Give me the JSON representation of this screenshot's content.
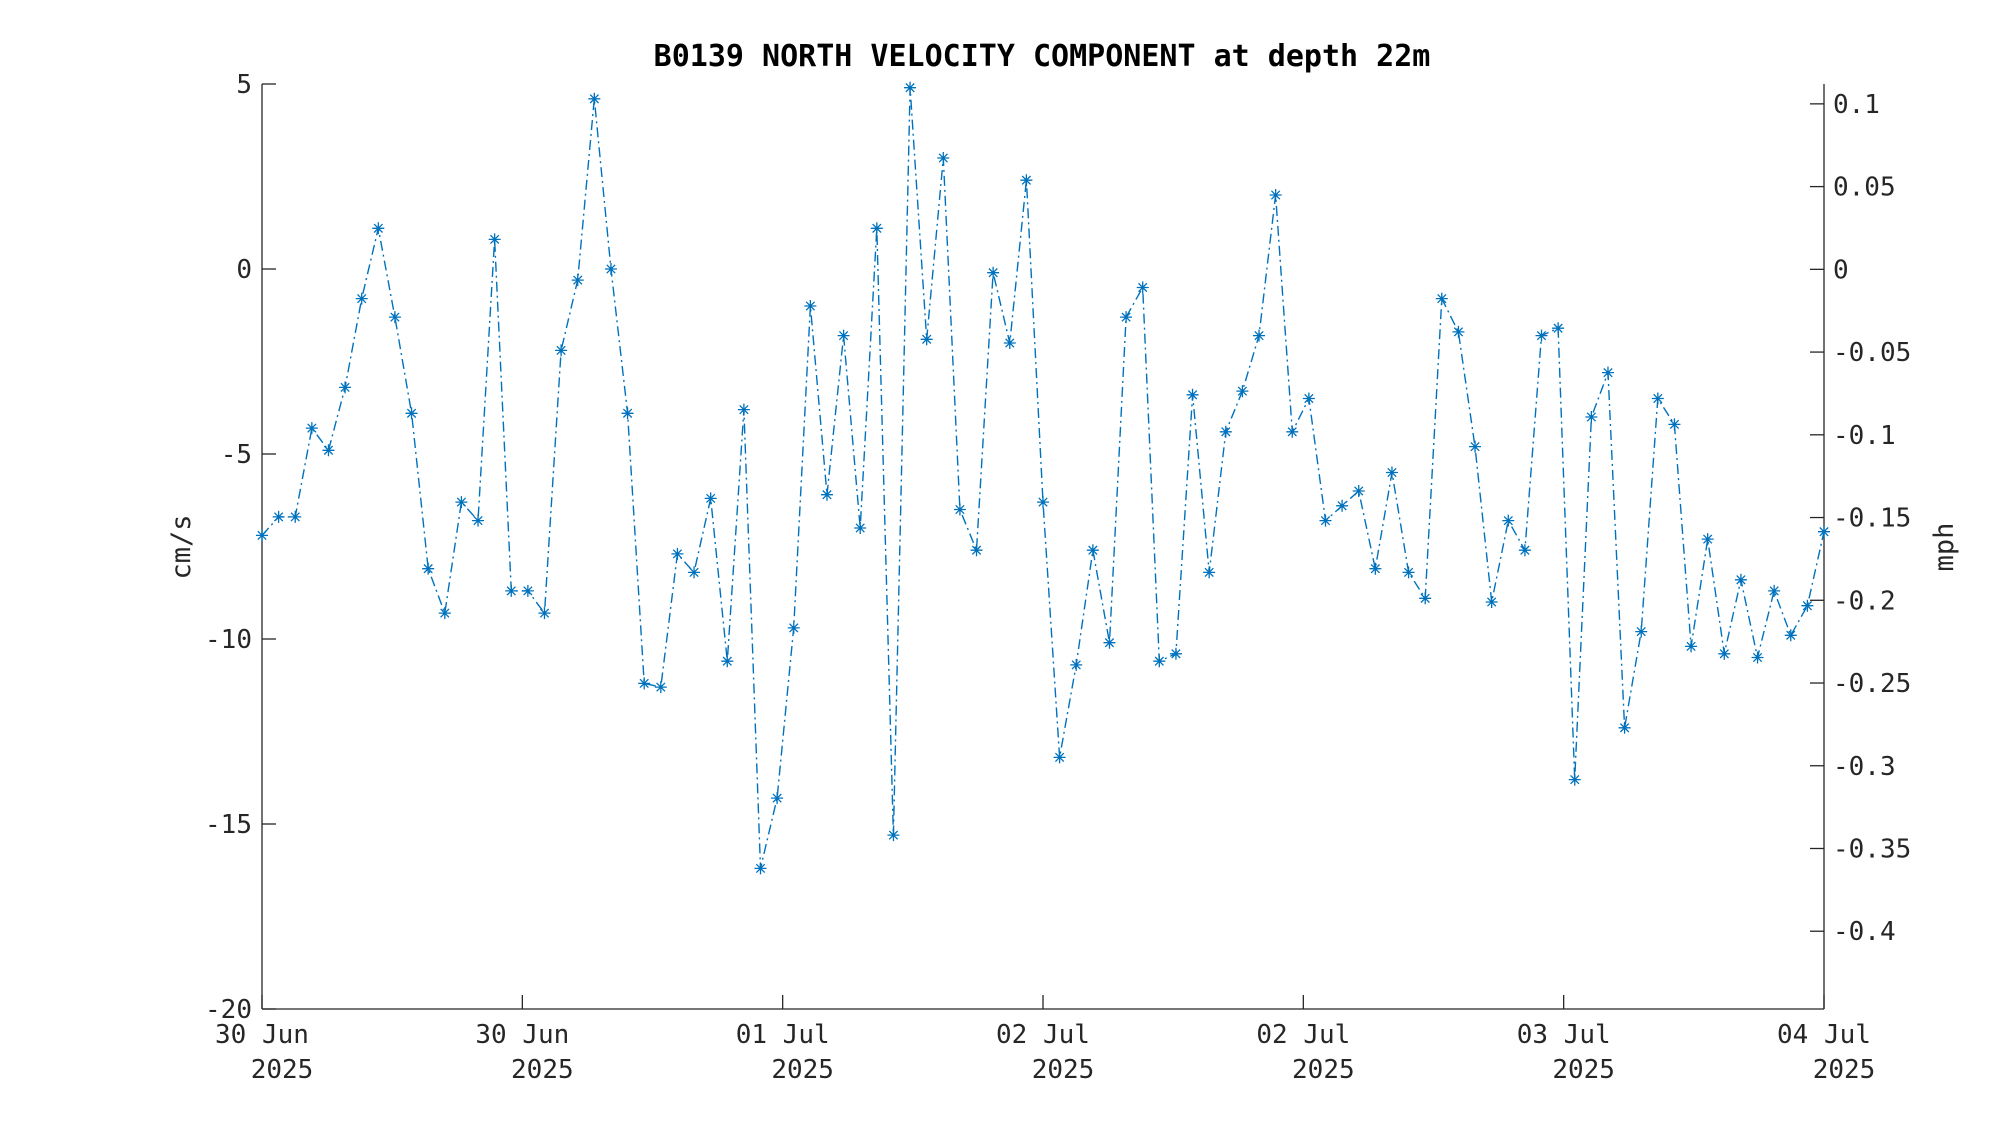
{
  "chart_data": {
    "type": "line",
    "title": "B0139 NORTH VELOCITY COMPONENT at depth 22m",
    "ylabel": "cm/s",
    "y2label": "mph",
    "ylim": [
      -20,
      5
    ],
    "yticks": [
      "5",
      "0",
      "-5",
      "-10",
      "-15",
      "-20"
    ],
    "y2lim": [
      -0.447,
      0.112
    ],
    "y2ticks": [
      "0.1",
      "0.05",
      "0",
      "-0.05",
      "-0.1",
      "-0.15",
      "-0.2",
      "-0.25",
      "-0.3",
      "-0.35",
      "-0.4"
    ],
    "xticks": [
      {
        "day": "30 Jun",
        "year": "2025"
      },
      {
        "day": "30 Jun",
        "year": "2025"
      },
      {
        "day": "01 Jul",
        "year": "2025"
      },
      {
        "day": "02 Jul",
        "year": "2025"
      },
      {
        "day": "02 Jul",
        "year": "2025"
      },
      {
        "day": "03 Jul",
        "year": "2025"
      },
      {
        "day": "04 Jul",
        "year": "2025"
      }
    ],
    "series_color": "#0072BD",
    "marker": "asterisk",
    "line_style": "dash-dot",
    "grid": false,
    "values": [
      -7.2,
      -6.7,
      -6.7,
      -4.3,
      -4.9,
      -3.2,
      -0.8,
      1.1,
      -1.3,
      -3.9,
      -8.1,
      -9.3,
      -6.3,
      -6.8,
      0.8,
      -8.7,
      -8.7,
      -9.3,
      -2.2,
      -0.3,
      4.6,
      0.0,
      -3.9,
      -11.2,
      -11.3,
      -7.7,
      -8.2,
      -6.2,
      -10.6,
      -3.8,
      -16.2,
      -14.3,
      -9.7,
      -1.0,
      -6.1,
      -1.8,
      -7.0,
      1.1,
      -15.3,
      4.9,
      -1.9,
      3.0,
      -6.5,
      -7.6,
      -0.1,
      -2.0,
      2.4,
      -6.3,
      -13.2,
      -10.7,
      -7.6,
      -10.1,
      -1.3,
      -0.5,
      -10.6,
      -10.4,
      -3.4,
      -8.2,
      -4.4,
      -3.3,
      -1.8,
      2.0,
      -4.4,
      -3.5,
      -6.8,
      -6.4,
      -6.0,
      -8.1,
      -5.5,
      -8.2,
      -8.9,
      -0.8,
      -1.7,
      -4.8,
      -9.0,
      -6.8,
      -7.6,
      -1.8,
      -1.6,
      -13.8,
      -4.0,
      -2.8,
      -12.4,
      -9.8,
      -3.5,
      -4.2,
      -10.2,
      -7.3,
      -10.4,
      -8.4,
      -10.5,
      -8.7,
      -9.9,
      -9.1,
      -7.1
    ]
  }
}
